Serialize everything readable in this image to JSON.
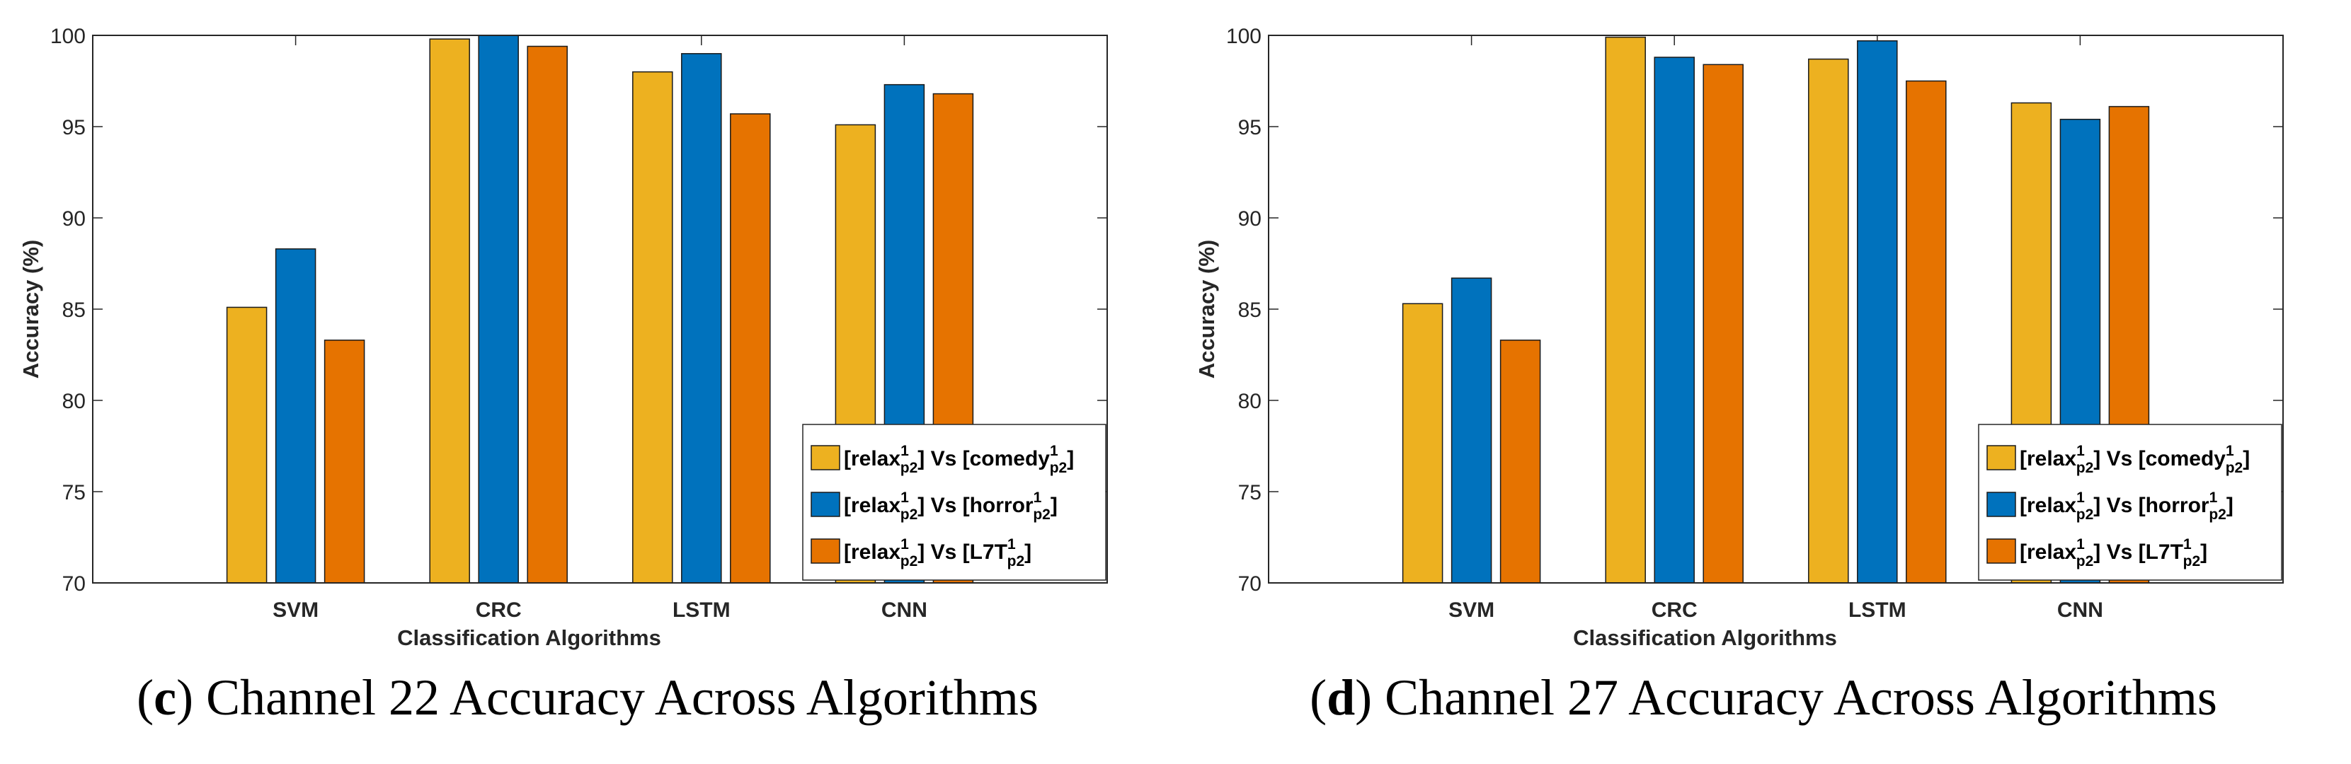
{
  "chart_data": [
    {
      "type": "bar",
      "panel": "c",
      "caption_label": "c",
      "caption_text": "Channel 22 Accuracy Across Algorithms",
      "xlabel": "Classification Algorithms",
      "ylabel": "Accuracy (%)",
      "ylim": [
        70,
        100
      ],
      "yticks": [
        70,
        75,
        80,
        85,
        90,
        95,
        100
      ],
      "categories": [
        "SVM",
        "CRC",
        "LSTM",
        "CNN"
      ],
      "legend_position": "bottom-right",
      "series": [
        {
          "name": "[relax^1_p2] Vs [comedy^1_p2]",
          "base": "relax",
          "other": "comedy",
          "color": "#EDB120",
          "values": [
            85.1,
            99.8,
            98.0,
            95.1
          ]
        },
        {
          "name": "[relax^1_p2] Vs [horror^1_p2]",
          "base": "relax",
          "other": "horror",
          "color": "#0072BD",
          "values": [
            88.3,
            100.0,
            99.0,
            97.3
          ]
        },
        {
          "name": "[relax^1_p2] Vs [L7T^1_p2]",
          "base": "relax",
          "other": "L7T",
          "color": "#E67300",
          "values": [
            83.3,
            99.4,
            95.7,
            96.8
          ]
        }
      ]
    },
    {
      "type": "bar",
      "panel": "d",
      "caption_label": "d",
      "caption_text": "Channel 27 Accuracy Across Algorithms",
      "xlabel": "Classification Algorithms",
      "ylabel": "Accuracy (%)",
      "ylim": [
        70,
        100
      ],
      "yticks": [
        70,
        75,
        80,
        85,
        90,
        95,
        100
      ],
      "categories": [
        "SVM",
        "CRC",
        "LSTM",
        "CNN"
      ],
      "legend_position": "bottom-right",
      "series": [
        {
          "name": "[relax^1_p2] Vs [comedy^1_p2]",
          "base": "relax",
          "other": "comedy",
          "color": "#EDB120",
          "values": [
            85.3,
            99.9,
            98.7,
            96.3
          ]
        },
        {
          "name": "[relax^1_p2] Vs [horror^1_p2]",
          "base": "relax",
          "other": "horror",
          "color": "#0072BD",
          "values": [
            86.7,
            98.8,
            99.7,
            95.4
          ]
        },
        {
          "name": "[relax^1_p2] Vs [L7T^1_p2]",
          "base": "relax",
          "other": "L7T",
          "color": "#E67300",
          "values": [
            83.3,
            98.4,
            97.5,
            96.1
          ]
        }
      ]
    }
  ],
  "legend_tokens": {
    "vs": "Vs",
    "sup": "1",
    "sub": "p2"
  }
}
